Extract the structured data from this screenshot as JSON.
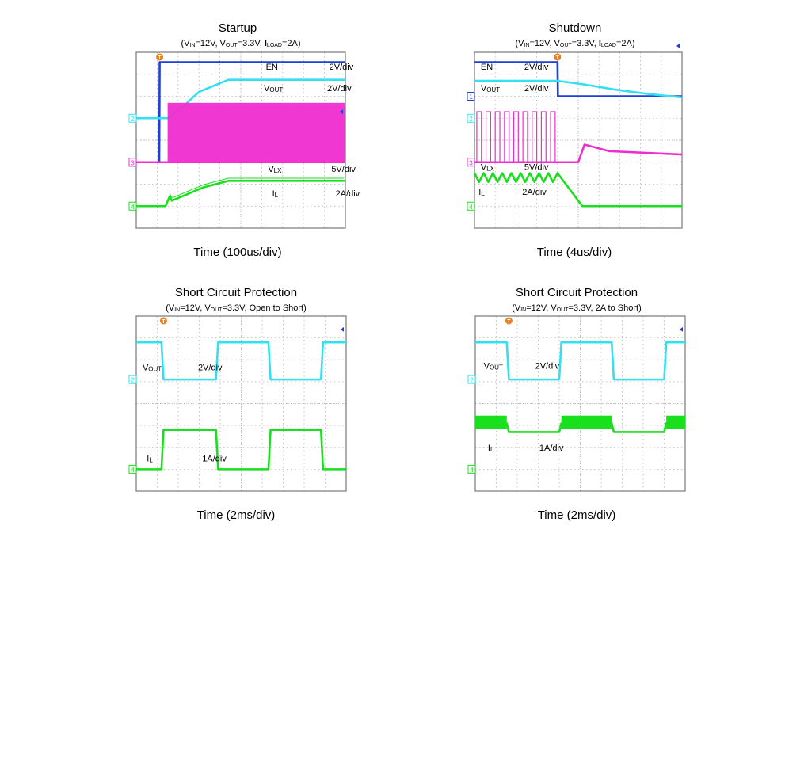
{
  "colors": {
    "en": "#1f3fd6",
    "vout": "#33e0f2",
    "vlx": "#ef2ccf",
    "il": "#19e01c",
    "grid": "#b3b3b3",
    "frame": "#777777",
    "trigger": "#f07f1a"
  },
  "chart_data": [
    {
      "type": "line",
      "title": "Startup",
      "subtitle": {
        "vin": "12V",
        "vout": "3.3V",
        "iload": "2A"
      },
      "subtitle_plain": "(VIN=12V, VOUT=3.3V, ILOAD=2A)",
      "xlabel": "Time (100us/div)",
      "channel_markers": [
        "1",
        "2",
        "3",
        "4"
      ],
      "labels": [
        {
          "name": "EN",
          "scale": "2V/div"
        },
        {
          "name": "VOUT",
          "scale": "2V/div"
        },
        {
          "name": "VLX",
          "scale": "5V/div"
        },
        {
          "name": "IL",
          "scale": "2A/div"
        }
      ],
      "xlim": [
        0,
        10
      ],
      "ylim": [
        0,
        8
      ],
      "series": [
        {
          "channel": "EN",
          "color_key": "en",
          "x": [
            0,
            1.1,
            1.12,
            10
          ],
          "y": [
            3.0,
            3.0,
            7.55,
            7.55
          ]
        },
        {
          "channel": "VOUT",
          "color_key": "vout",
          "x": [
            0,
            1.5,
            2.2,
            3.0,
            4.4,
            10
          ],
          "y": [
            5.0,
            5.0,
            5.5,
            6.2,
            6.75,
            6.75
          ]
        },
        {
          "channel": "VLX",
          "color_key": "vlx",
          "x": [
            0,
            1.5,
            1.55,
            10
          ],
          "y": [
            3.0,
            3.0,
            3.0,
            3.0
          ],
          "switching": {
            "from": 1.5,
            "to": 10,
            "high": 5.7,
            "low": 3.0
          }
        },
        {
          "channel": "IL",
          "color_key": "il",
          "x": [
            0,
            1.4,
            1.6,
            1.7,
            2.2,
            3.2,
            4.4,
            10
          ],
          "y": [
            1.0,
            1.0,
            1.45,
            1.25,
            1.45,
            1.85,
            2.15,
            2.15
          ],
          "ripple": 0.12
        }
      ]
    },
    {
      "type": "line",
      "title": "Shutdown",
      "subtitle": {
        "vin": "12V",
        "vout": "3.3V",
        "iload": "2A"
      },
      "subtitle_plain": "(VIN=12V, VOUT=3.3V, ILOAD=2A)",
      "xlabel": "Time (4us/div)",
      "channel_markers": [
        "1",
        "2",
        "3",
        "4"
      ],
      "labels": [
        {
          "name": "EN",
          "scale": "2V/div"
        },
        {
          "name": "VOUT",
          "scale": "2V/div"
        },
        {
          "name": "VLX",
          "scale": "5V/div"
        },
        {
          "name": "IL",
          "scale": "2A/div"
        }
      ],
      "xlim": [
        0,
        10
      ],
      "ylim": [
        0,
        8
      ],
      "series": [
        {
          "channel": "EN",
          "color_key": "en",
          "x": [
            0,
            4.0,
            4.02,
            10
          ],
          "y": [
            7.55,
            7.55,
            6.0,
            6.0
          ]
        },
        {
          "channel": "VOUT",
          "color_key": "vout",
          "x": [
            0,
            4.0,
            5.2,
            6.8,
            8.4,
            10
          ],
          "y": [
            6.7,
            6.7,
            6.55,
            6.3,
            6.1,
            5.95
          ]
        },
        {
          "channel": "VLX",
          "color_key": "vlx",
          "x": [
            0,
            4.0,
            5.0,
            5.3,
            6.5,
            10
          ],
          "y": [
            3.0,
            3.0,
            3.0,
            3.8,
            3.5,
            3.35
          ],
          "switching": {
            "from": 0,
            "to": 4.0,
            "pulses": 9,
            "high": 5.3,
            "low": 3.0
          }
        },
        {
          "channel": "IL",
          "color_key": "il",
          "x": [
            0,
            4.0,
            5.2,
            10
          ],
          "y": [
            2.3,
            2.3,
            1.0,
            1.0
          ],
          "sawtooth": {
            "from": 0,
            "to": 4.0,
            "teeth": 9,
            "amp": 0.4
          }
        }
      ]
    },
    {
      "type": "line",
      "title": "Short Circuit Protection",
      "subtitle_plain": "(VIN=12V, VOUT=3.3V, Open to Short)",
      "subtitle": {
        "vin": "12V",
        "vout": "3.3V",
        "extra": "Open to Short"
      },
      "xlabel": "Time (2ms/div)",
      "channel_markers": [
        "2",
        "4"
      ],
      "labels": [
        {
          "name": "VOUT",
          "scale": "2V/div"
        },
        {
          "name": "IL",
          "scale": "1A/div"
        }
      ],
      "xlim": [
        0,
        10
      ],
      "ylim": [
        0,
        8
      ],
      "series": [
        {
          "channel": "VOUT",
          "color_key": "vout",
          "x": [
            0,
            1.2,
            1.3,
            3.8,
            3.9,
            6.3,
            6.4,
            8.8,
            8.9,
            10
          ],
          "y": [
            6.8,
            6.8,
            5.1,
            5.1,
            6.8,
            6.8,
            5.1,
            5.1,
            6.8,
            6.8
          ]
        },
        {
          "channel": "IL",
          "color_key": "il",
          "x": [
            0,
            1.2,
            1.3,
            3.8,
            3.9,
            6.3,
            6.4,
            8.8,
            8.9,
            10
          ],
          "y": [
            1.0,
            1.0,
            2.8,
            2.8,
            1.0,
            1.0,
            2.8,
            2.8,
            1.0,
            1.0
          ]
        }
      ]
    },
    {
      "type": "line",
      "title": "Short Circuit Protection",
      "subtitle_plain": "(VIN=12V, VOUT=3.3V, 2A to Short)",
      "subtitle": {
        "vin": "12V",
        "vout": "3.3V",
        "extra": "2A to Short"
      },
      "xlabel": "Time (2ms/div)",
      "channel_markers": [
        "2",
        "4"
      ],
      "labels": [
        {
          "name": "VOUT",
          "scale": "2V/div"
        },
        {
          "name": "IL",
          "scale": "1A/div"
        }
      ],
      "xlim": [
        0,
        10
      ],
      "ylim": [
        0,
        8
      ],
      "series": [
        {
          "channel": "VOUT",
          "color_key": "vout",
          "x": [
            0,
            1.5,
            1.6,
            4.0,
            4.1,
            6.5,
            6.6,
            9.0,
            9.1,
            10
          ],
          "y": [
            6.8,
            6.8,
            5.1,
            5.1,
            6.8,
            6.8,
            5.1,
            5.1,
            6.8,
            6.8
          ]
        },
        {
          "channel": "IL",
          "color_key": "il",
          "x": [
            0,
            1.5,
            1.6,
            4.0,
            4.1,
            6.5,
            6.6,
            9.0,
            9.1,
            10
          ],
          "y": [
            3.1,
            3.1,
            2.7,
            2.7,
            3.1,
            3.1,
            2.7,
            2.7,
            3.1,
            3.1
          ],
          "ripple_high": 0.35
        }
      ]
    }
  ]
}
